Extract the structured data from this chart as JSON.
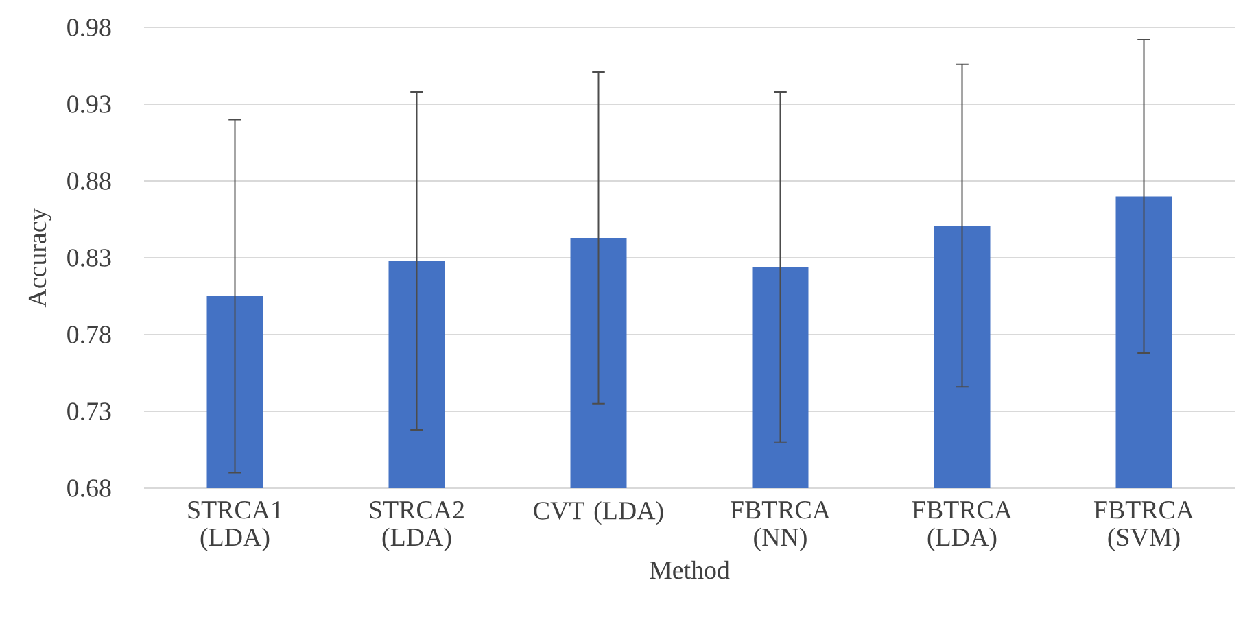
{
  "chart_data": {
    "type": "bar",
    "xlabel": "Method",
    "ylabel": "Accuracy",
    "categories": [
      "STRCA1 (LDA)",
      "STRCA2 (LDA)",
      "CVT (LDA)",
      "FBTRCA (NN)",
      "FBTRCA (LDA)",
      "FBTRCA (SVM)"
    ],
    "values": [
      0.805,
      0.828,
      0.843,
      0.824,
      0.851,
      0.87
    ],
    "errors": [
      0.115,
      0.11,
      0.108,
      0.114,
      0.105,
      0.102
    ],
    "color": "#4472c4",
    "ylim": [
      0.68,
      0.98
    ],
    "yticks": [
      0.68,
      0.73,
      0.78,
      0.83,
      0.88,
      0.93,
      0.98
    ],
    "grid": "y"
  }
}
